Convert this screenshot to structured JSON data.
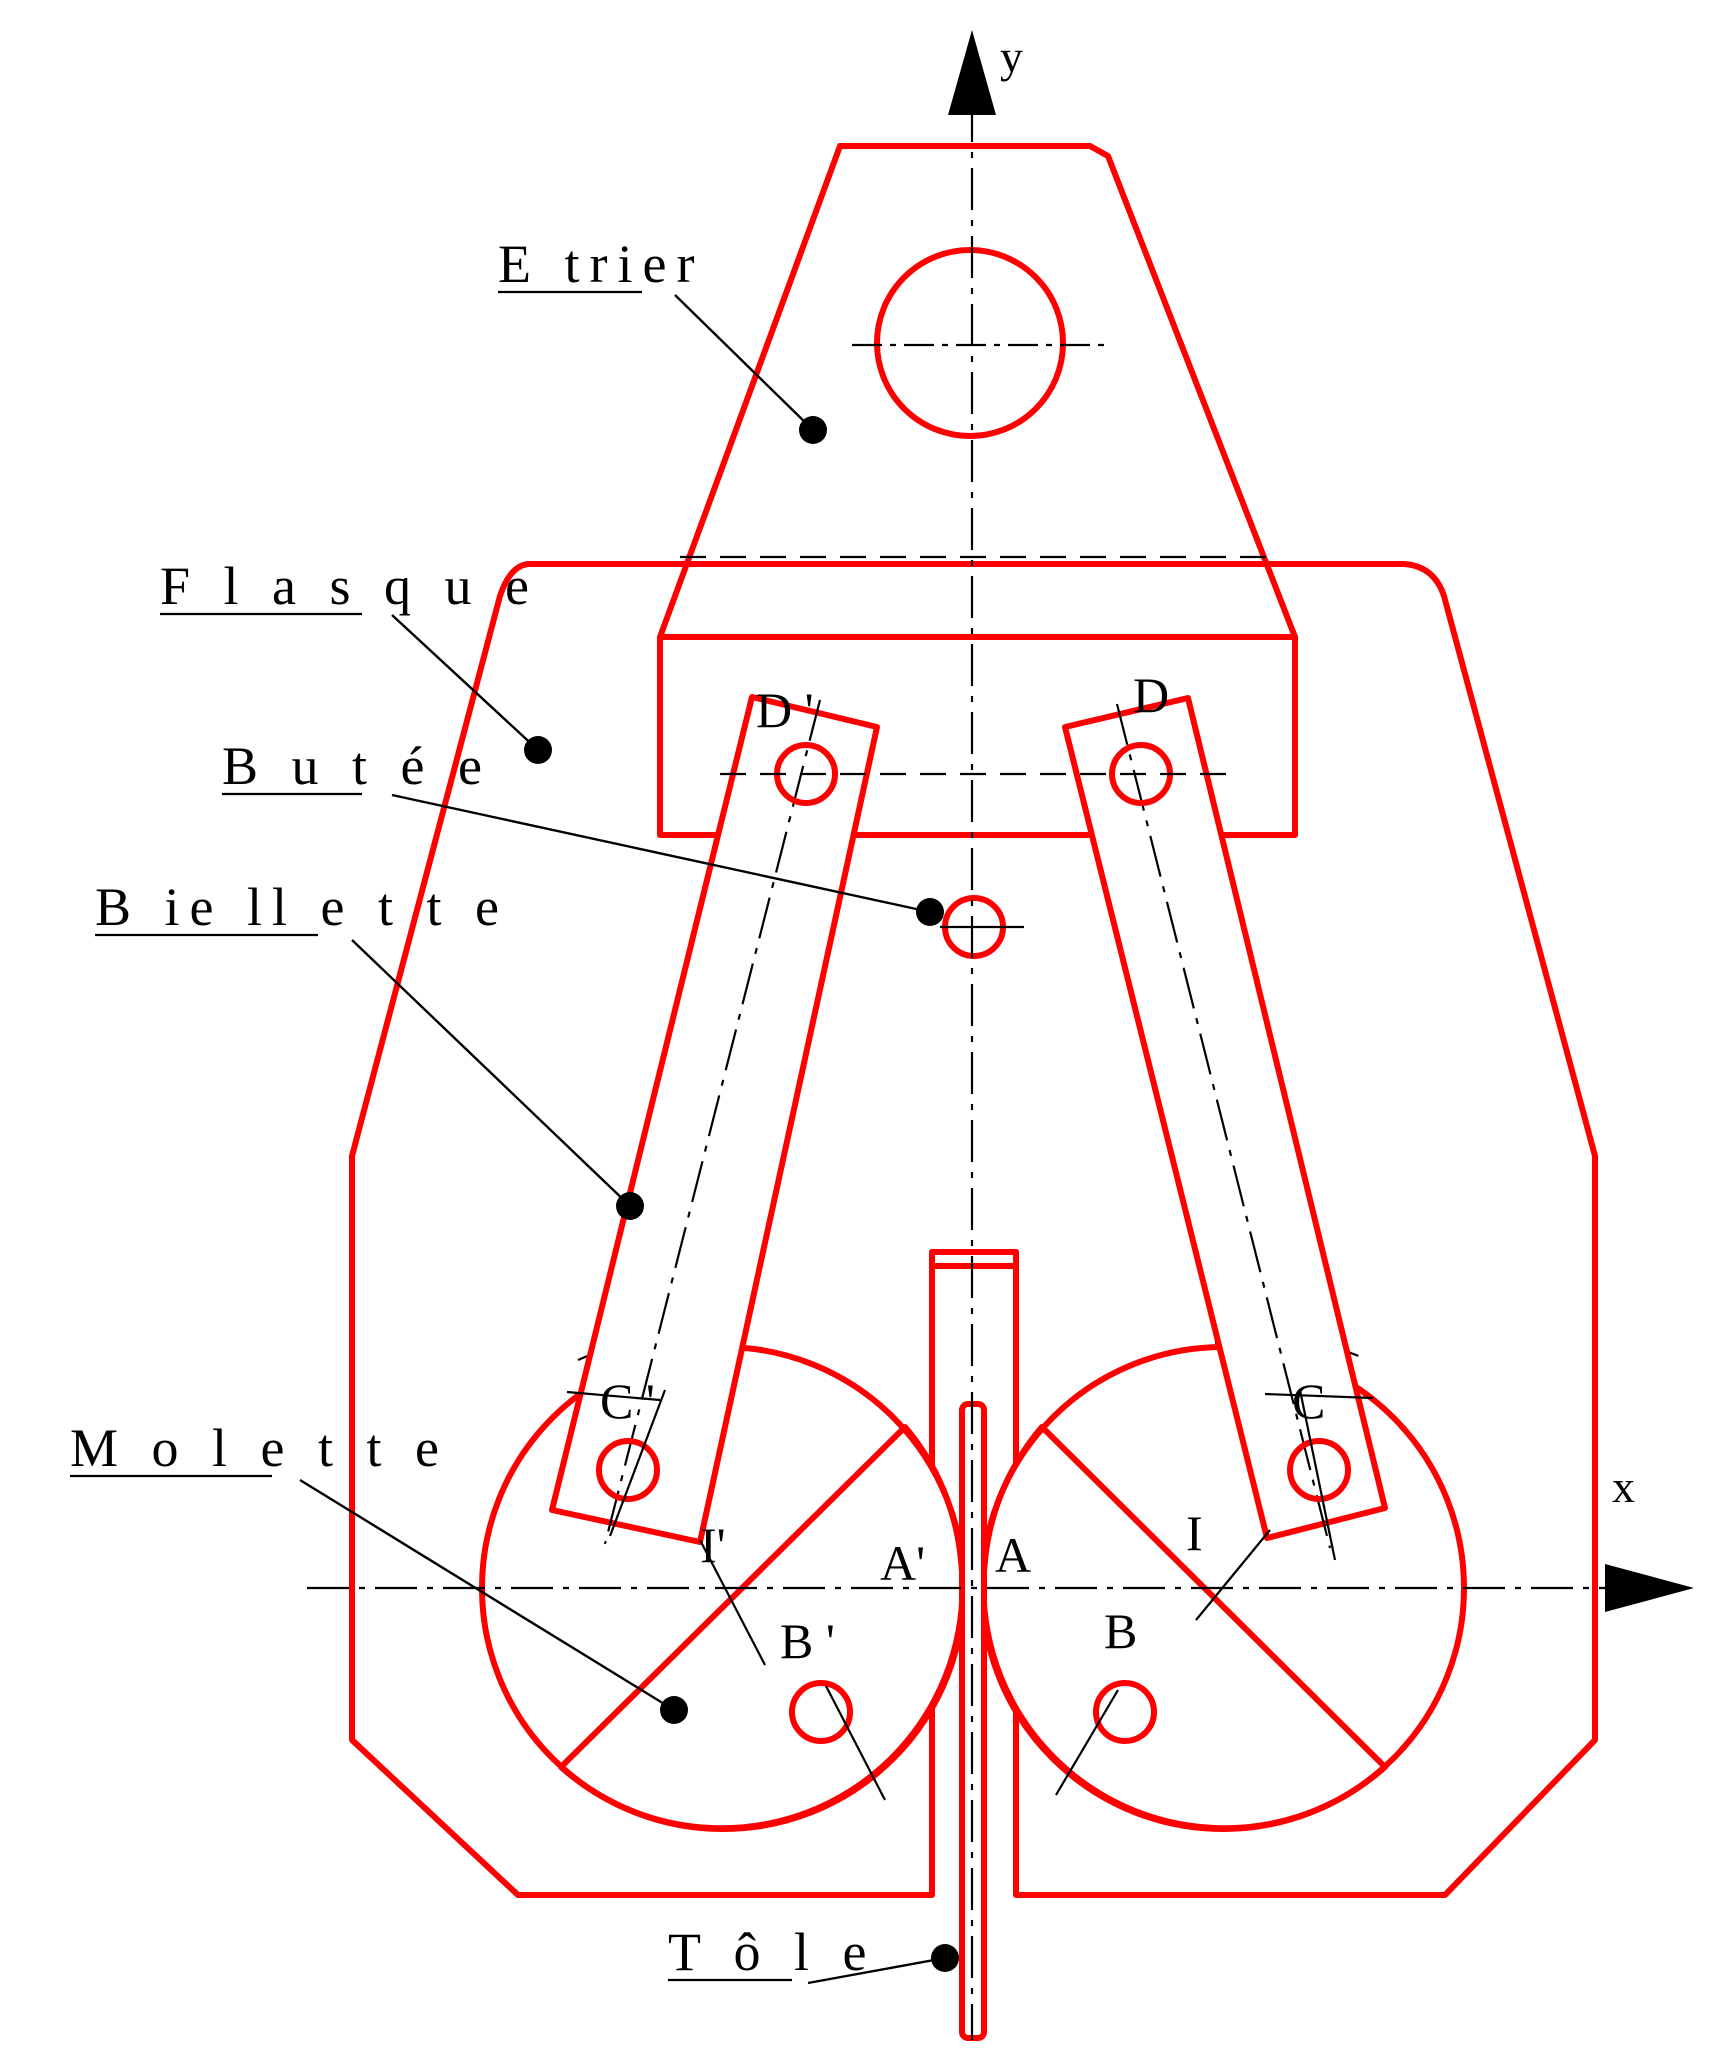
{
  "colors": {
    "outline": "#ff0000",
    "lines": "#000000",
    "background": "#ffffff"
  },
  "labels": {
    "etrier": "E trier",
    "flasque": "F l a s q u e",
    "butee": "B u t é e",
    "biellette": "B  ie ll e t t e",
    "molette": "M  o l e t t e",
    "tole": "T ô l e"
  },
  "points": {
    "d_prime": "D '",
    "d": "D",
    "c_prime": "C '",
    "c": "C",
    "i_prime": "I'",
    "i": "I",
    "a_prime": "A'",
    "a": "A",
    "b_prime": "B '",
    "b": "B"
  },
  "axes": {
    "x": "x",
    "y": "y"
  }
}
